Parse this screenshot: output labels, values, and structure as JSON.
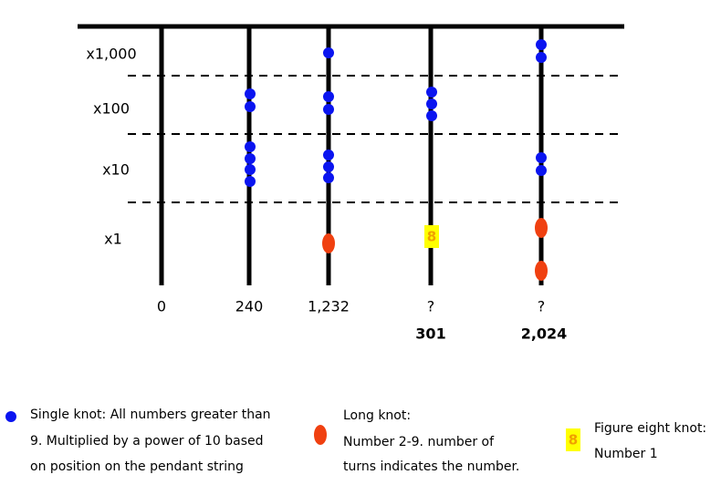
{
  "rows": [
    "x1,000",
    "x100",
    "x10",
    "x1"
  ],
  "strings": [
    {
      "label": "0"
    },
    {
      "label": "240"
    },
    {
      "label": "1,232"
    },
    {
      "label": "?",
      "answer": "301"
    },
    {
      "label": "?",
      "answer": "2,024"
    }
  ],
  "figure_eight_glyph": "8",
  "legend": {
    "single_knot": [
      "Single knot: All numbers greater than",
      "9. Multiplied by a power of 10 based",
      "on position on the pendant string"
    ],
    "long_knot": [
      "Long knot:",
      "Number 2-9. number of",
      "turns indicates the number."
    ],
    "figure_eight_knot": [
      "Figure eight knot:",
      "Number 1"
    ]
  }
}
